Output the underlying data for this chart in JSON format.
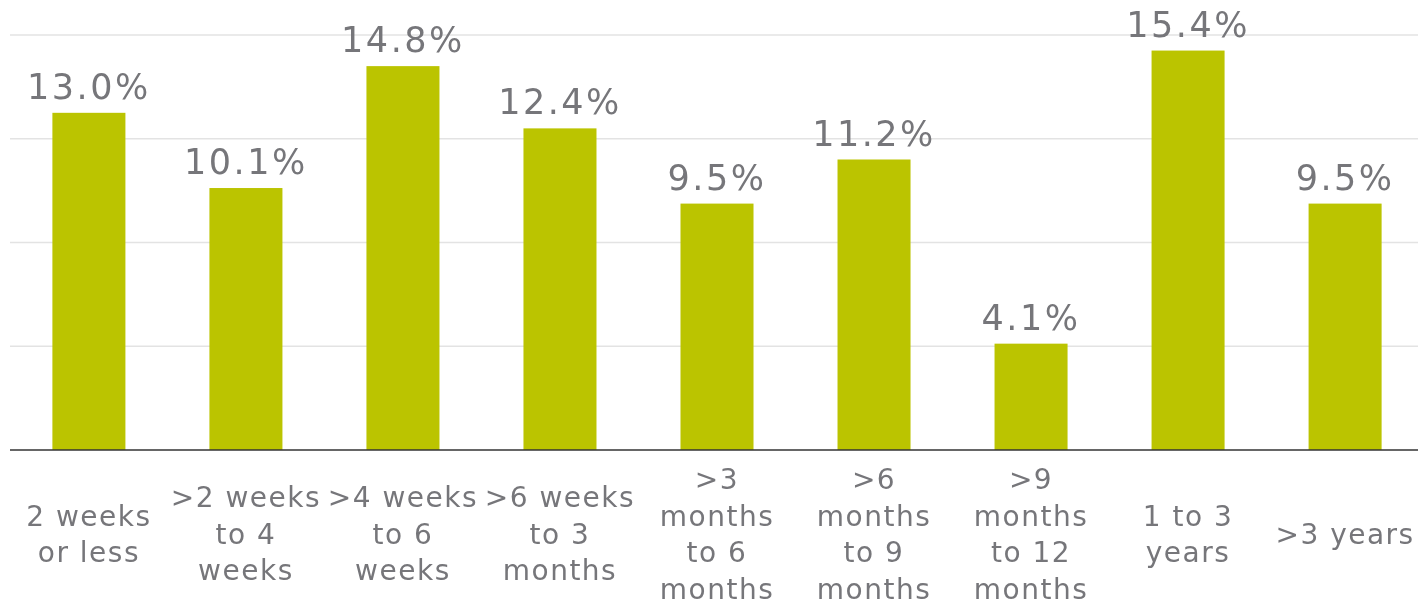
{
  "chart_data": {
    "type": "bar",
    "categories": [
      "2 weeks or less",
      ">2 weeks to 4 weeks",
      ">4 weeks to 6 weeks",
      ">6 weeks to 3 months",
      ">3 months to 6 months",
      ">6 months to 9 months",
      ">9 months to 12 months",
      "1 to 3 years",
      ">3 years"
    ],
    "values": [
      13.0,
      10.1,
      14.8,
      12.4,
      9.5,
      11.2,
      4.1,
      15.4,
      9.5
    ],
    "value_labels": [
      "13.0%",
      "10.1%",
      "14.8%",
      "12.4%",
      "9.5%",
      "11.2%",
      "4.1%",
      "15.4%",
      "9.5%"
    ],
    "color": "#bbc400",
    "ylim": [
      0,
      16
    ],
    "yticks": [
      {
        "value": 0,
        "label": null
      },
      {
        "value": 4,
        "label": null
      },
      {
        "value": 8,
        "label": null
      },
      {
        "value": 12,
        "label": null
      },
      {
        "value": 16,
        "label": null
      }
    ],
    "grid": "y",
    "tick_labels": "x"
  }
}
